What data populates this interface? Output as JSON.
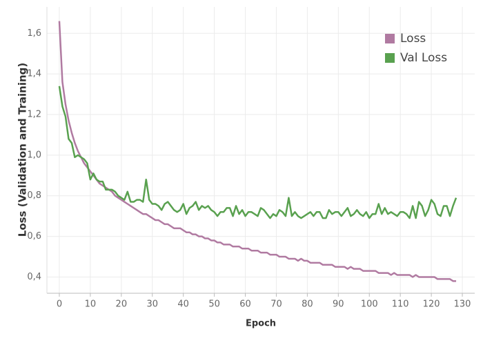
{
  "chart_data": {
    "type": "line",
    "x_label": "Epoch",
    "y_label": "Loss (Validation and Training)",
    "x": [
      0,
      1,
      2,
      3,
      4,
      5,
      6,
      7,
      8,
      9,
      10,
      11,
      12,
      13,
      14,
      15,
      16,
      17,
      18,
      19,
      20,
      21,
      22,
      23,
      24,
      25,
      26,
      27,
      28,
      29,
      30,
      31,
      32,
      33,
      34,
      35,
      36,
      37,
      38,
      39,
      40,
      41,
      42,
      43,
      44,
      45,
      46,
      47,
      48,
      49,
      50,
      51,
      52,
      53,
      54,
      55,
      56,
      57,
      58,
      59,
      60,
      61,
      62,
      63,
      64,
      65,
      66,
      67,
      68,
      69,
      70,
      71,
      72,
      73,
      74,
      75,
      76,
      77,
      78,
      79,
      80,
      81,
      82,
      83,
      84,
      85,
      86,
      87,
      88,
      89,
      90,
      91,
      92,
      93,
      94,
      95,
      96,
      97,
      98,
      99,
      100,
      101,
      102,
      103,
      104,
      105,
      106,
      107,
      108,
      109,
      110,
      111,
      112,
      113,
      114,
      115,
      116,
      117,
      118,
      119,
      120,
      121,
      122,
      123,
      124,
      125,
      126,
      127,
      128
    ],
    "series": [
      {
        "name": "Loss",
        "color": "#b07aa1",
        "values": [
          1.66,
          1.36,
          1.25,
          1.17,
          1.11,
          1.06,
          1.02,
          0.99,
          0.96,
          0.94,
          0.92,
          0.9,
          0.88,
          0.86,
          0.85,
          0.84,
          0.83,
          0.82,
          0.8,
          0.79,
          0.78,
          0.77,
          0.76,
          0.75,
          0.74,
          0.73,
          0.72,
          0.71,
          0.71,
          0.7,
          0.69,
          0.68,
          0.68,
          0.67,
          0.66,
          0.66,
          0.65,
          0.64,
          0.64,
          0.64,
          0.63,
          0.62,
          0.62,
          0.61,
          0.61,
          0.6,
          0.6,
          0.59,
          0.59,
          0.58,
          0.58,
          0.57,
          0.57,
          0.56,
          0.56,
          0.56,
          0.55,
          0.55,
          0.55,
          0.54,
          0.54,
          0.54,
          0.53,
          0.53,
          0.53,
          0.52,
          0.52,
          0.52,
          0.51,
          0.51,
          0.51,
          0.5,
          0.5,
          0.5,
          0.49,
          0.49,
          0.49,
          0.48,
          0.49,
          0.48,
          0.48,
          0.47,
          0.47,
          0.47,
          0.47,
          0.46,
          0.46,
          0.46,
          0.46,
          0.45,
          0.45,
          0.45,
          0.45,
          0.44,
          0.45,
          0.44,
          0.44,
          0.44,
          0.43,
          0.43,
          0.43,
          0.43,
          0.43,
          0.42,
          0.42,
          0.42,
          0.42,
          0.41,
          0.42,
          0.41,
          0.41,
          0.41,
          0.41,
          0.41,
          0.4,
          0.41,
          0.4,
          0.4,
          0.4,
          0.4,
          0.4,
          0.4,
          0.39,
          0.39,
          0.39,
          0.39,
          0.39,
          0.38,
          0.38
        ]
      },
      {
        "name": "Val Loss",
        "color": "#59a14f",
        "values": [
          1.34,
          1.24,
          1.19,
          1.08,
          1.06,
          0.99,
          1.0,
          0.99,
          0.98,
          0.96,
          0.88,
          0.91,
          0.88,
          0.87,
          0.87,
          0.83,
          0.83,
          0.83,
          0.82,
          0.8,
          0.79,
          0.78,
          0.82,
          0.77,
          0.77,
          0.78,
          0.78,
          0.77,
          0.88,
          0.78,
          0.76,
          0.76,
          0.75,
          0.73,
          0.76,
          0.77,
          0.75,
          0.73,
          0.72,
          0.73,
          0.76,
          0.71,
          0.74,
          0.75,
          0.77,
          0.73,
          0.75,
          0.74,
          0.75,
          0.73,
          0.72,
          0.7,
          0.72,
          0.72,
          0.74,
          0.74,
          0.7,
          0.75,
          0.71,
          0.73,
          0.7,
          0.72,
          0.72,
          0.71,
          0.7,
          0.74,
          0.73,
          0.71,
          0.69,
          0.71,
          0.7,
          0.73,
          0.72,
          0.7,
          0.79,
          0.7,
          0.72,
          0.7,
          0.69,
          0.7,
          0.71,
          0.72,
          0.7,
          0.72,
          0.72,
          0.69,
          0.69,
          0.73,
          0.71,
          0.72,
          0.72,
          0.7,
          0.72,
          0.74,
          0.7,
          0.71,
          0.73,
          0.71,
          0.7,
          0.72,
          0.69,
          0.71,
          0.71,
          0.76,
          0.71,
          0.74,
          0.71,
          0.72,
          0.71,
          0.7,
          0.72,
          0.72,
          0.71,
          0.69,
          0.75,
          0.69,
          0.77,
          0.75,
          0.7,
          0.73,
          0.78,
          0.76,
          0.71,
          0.7,
          0.75,
          0.75,
          0.7,
          0.75,
          0.79
        ]
      }
    ],
    "xlim": [
      -4,
      134
    ],
    "ylim": [
      0.32,
      1.73
    ],
    "xticks": [
      0,
      10,
      20,
      30,
      40,
      50,
      60,
      70,
      80,
      90,
      100,
      110,
      120,
      130
    ],
    "yticks": [
      {
        "value": 0.4,
        "label": "0,4"
      },
      {
        "value": 0.6,
        "label": "0,6"
      },
      {
        "value": 0.8,
        "label": "0,8"
      },
      {
        "value": 1.0,
        "label": "1,0"
      },
      {
        "value": 1.2,
        "label": "1,2"
      },
      {
        "value": 1.4,
        "label": "1,4"
      },
      {
        "value": 1.6,
        "label": "1,6"
      }
    ],
    "grid": true,
    "legend": "top-right"
  }
}
